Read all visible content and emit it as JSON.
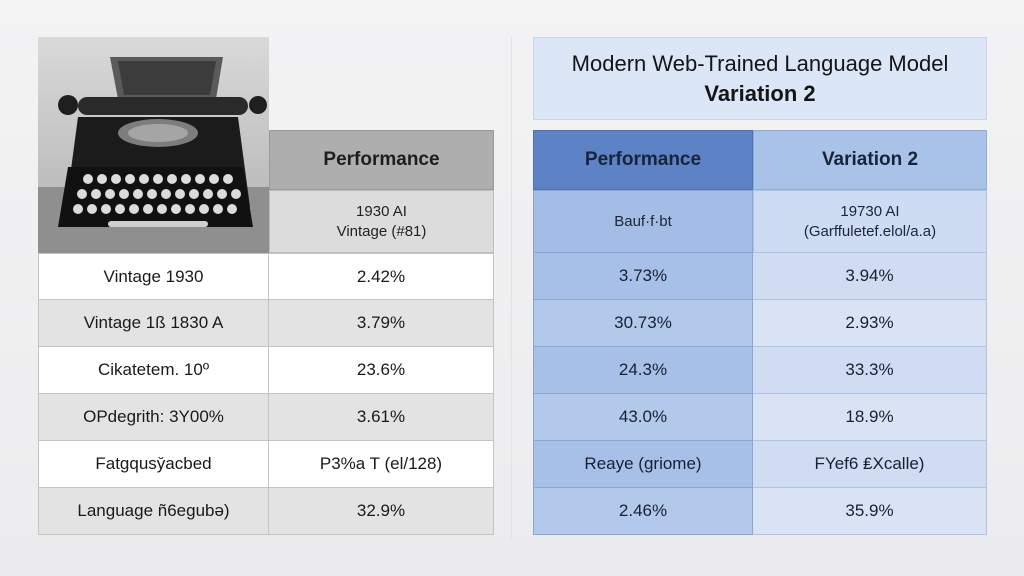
{
  "left": {
    "photo": {
      "icon": "vintage-typewriter-photo"
    },
    "header": "Performance",
    "subheader_lines": [
      "1930 AI",
      "Vintage (#81)"
    ],
    "rows": [
      {
        "label": "Vintage 1930",
        "value": "2.42%"
      },
      {
        "label": "Vintage 1ß 1830 A",
        "value": "3.79%"
      },
      {
        "label": "Cikatetem. 10º",
        "value": "23.6%"
      },
      {
        "label": "OPdegrith: 3Y00%",
        "value": "3.61%"
      },
      {
        "label": "Fatgqusy̆acbed",
        "value": "P3%a T (el/128)"
      },
      {
        "label": "Language ñ6egubə)",
        "value": "32.9%"
      }
    ]
  },
  "right": {
    "title_line1": "Modern Web-Trained Language Model",
    "title_line2": "Variation 2",
    "headers": [
      "Performance",
      "Variation 2"
    ],
    "subheader": {
      "col1_lines": [
        "Bauf·f·bt"
      ],
      "col2_lines": [
        "19730 AI",
        "(Garffuletef.elol/a.a)"
      ]
    },
    "rows": [
      {
        "col1": "3.73%",
        "col2": "3.94%"
      },
      {
        "col1": "30.73%",
        "col2": "2.93%"
      },
      {
        "col1": "24.3%",
        "col2": "33.3%"
      },
      {
        "col1": "43.0%",
        "col2": "18.9%"
      },
      {
        "col1": "Reaye (ɡriome)",
        "col2": "FYef6 ₤Xcalle)"
      },
      {
        "col1": "2.46%",
        "col2": "35.9%"
      }
    ]
  },
  "colors": {
    "left_header": "#aeaeae",
    "right_header_col1": "#5d83c6",
    "right_header_col2": "#a9c2e8",
    "right_title_bg": "#dbe6f6"
  }
}
